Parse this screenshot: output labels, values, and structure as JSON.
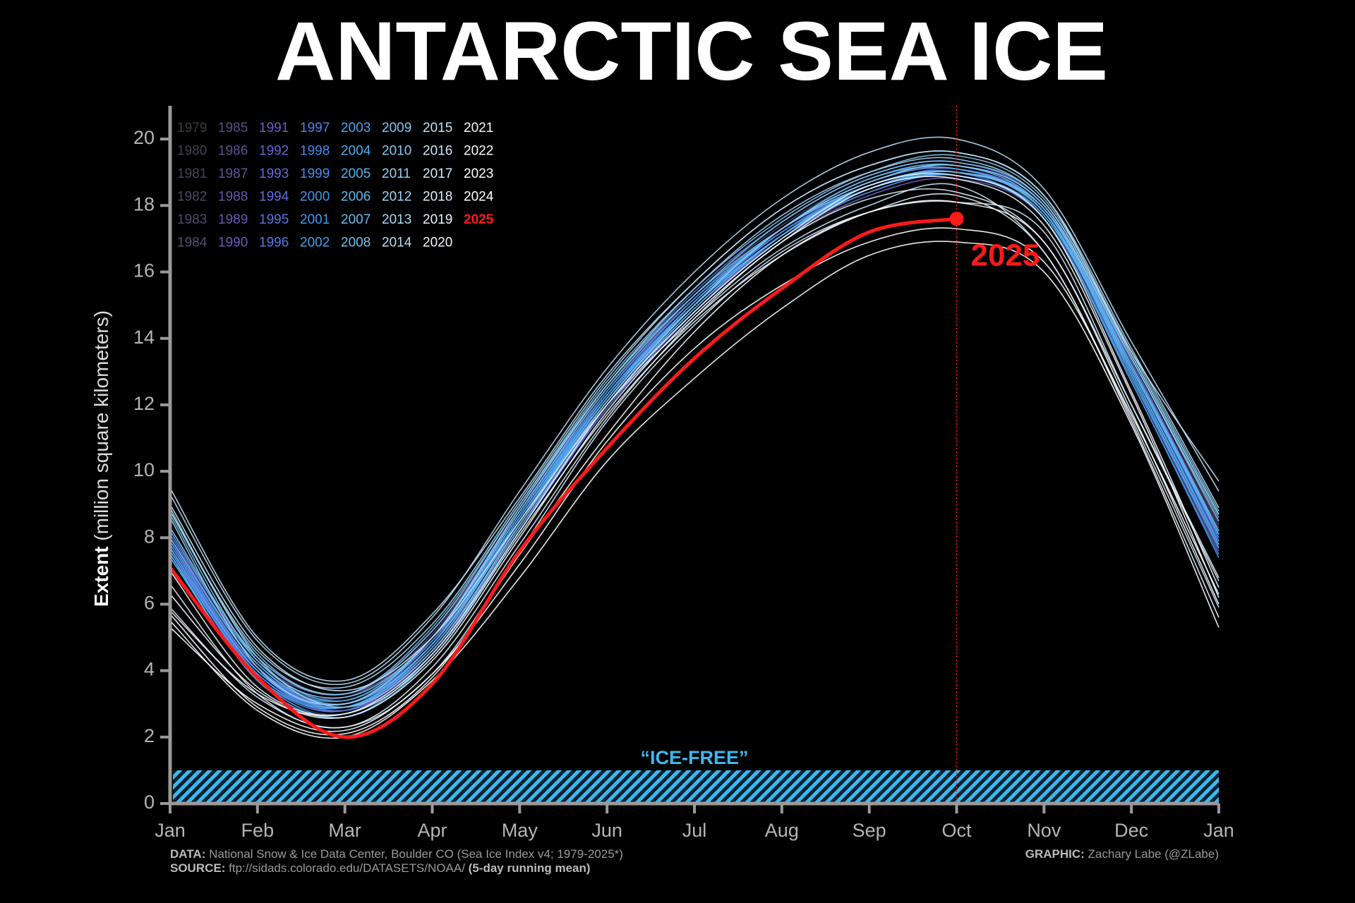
{
  "chart_data": {
    "type": "line",
    "title": "ANTARCTIC SEA ICE",
    "y_label_bold": "Extent",
    "y_label": "(million square kilometers)",
    "categories": [
      "Jan",
      "Feb",
      "Mar",
      "Apr",
      "May",
      "Jun",
      "Jul",
      "Aug",
      "Sep",
      "Oct",
      "Nov",
      "Dec",
      "Jan"
    ],
    "ylim": [
      0,
      21
    ],
    "yticks": [
      0,
      2,
      4,
      6,
      8,
      10,
      12,
      14,
      16,
      18,
      20
    ],
    "ice_free": {
      "label": "“ICE-FREE”",
      "value": 1,
      "color": "#3db8f0"
    },
    "highlight": {
      "label": "2025",
      "color": "#ff1a1a"
    },
    "series": [
      {
        "name": "1979",
        "color": "#3c3c46",
        "values": [
          7.6,
          4.1,
          3.0,
          4.9,
          8.6,
          12.1,
          14.9,
          17.0,
          18.3,
          18.8,
          17.6,
          12.9,
          7.8
        ]
      },
      {
        "name": "1980",
        "color": "#43404f",
        "values": [
          7.9,
          4.2,
          3.1,
          5.0,
          8.7,
          12.3,
          15.1,
          17.2,
          18.6,
          19.0,
          17.8,
          13.1,
          8.0
        ]
      },
      {
        "name": "1981",
        "color": "#484459",
        "values": [
          7.7,
          3.8,
          2.7,
          4.6,
          8.4,
          12.1,
          15.0,
          17.3,
          18.7,
          19.1,
          17.7,
          12.8,
          7.6
        ]
      },
      {
        "name": "1982",
        "color": "#4c4663",
        "values": [
          7.4,
          4.0,
          3.0,
          4.8,
          8.5,
          12.4,
          15.3,
          17.4,
          18.8,
          19.2,
          18.0,
          13.2,
          8.2
        ]
      },
      {
        "name": "1983",
        "color": "#51496d",
        "values": [
          8.0,
          4.3,
          3.1,
          4.9,
          8.6,
          12.2,
          15.0,
          17.1,
          18.5,
          19.0,
          17.9,
          13.3,
          8.3
        ]
      },
      {
        "name": "1984",
        "color": "#554c78",
        "values": [
          7.8,
          4.1,
          2.9,
          4.7,
          8.3,
          11.9,
          14.8,
          17.0,
          18.4,
          18.9,
          17.6,
          12.9,
          7.7
        ]
      },
      {
        "name": "1985",
        "color": "#5a4f84",
        "values": [
          7.5,
          4.0,
          3.2,
          5.1,
          8.9,
          12.5,
          15.2,
          17.2,
          18.5,
          19.0,
          17.8,
          13.0,
          7.9
        ]
      },
      {
        "name": "1986",
        "color": "#5f518f",
        "values": [
          8.1,
          4.4,
          3.3,
          5.2,
          8.8,
          12.2,
          15.0,
          17.1,
          18.5,
          19.1,
          17.9,
          13.4,
          8.4
        ]
      },
      {
        "name": "1987",
        "color": "#62539b",
        "values": [
          8.3,
          4.3,
          3.3,
          4.9,
          8.4,
          12.0,
          14.9,
          17.0,
          18.4,
          18.9,
          17.7,
          13.0,
          7.8
        ]
      },
      {
        "name": "1988",
        "color": "#6556a6",
        "values": [
          7.8,
          4.1,
          2.9,
          4.8,
          8.6,
          12.3,
          15.1,
          17.2,
          18.6,
          19.0,
          17.9,
          13.2,
          8.1
        ]
      },
      {
        "name": "1989",
        "color": "#6758b2",
        "values": [
          8.0,
          4.0,
          2.9,
          4.6,
          8.3,
          11.9,
          14.7,
          16.9,
          18.3,
          18.8,
          17.6,
          12.8,
          7.6
        ]
      },
      {
        "name": "1990",
        "color": "#695bbd",
        "values": [
          7.5,
          3.9,
          2.8,
          4.7,
          8.5,
          12.1,
          14.9,
          17.0,
          18.5,
          19.0,
          17.8,
          13.1,
          8.0
        ]
      },
      {
        "name": "1991",
        "color": "#6b5ec9",
        "values": [
          7.9,
          4.0,
          3.0,
          4.8,
          8.6,
          12.3,
          15.2,
          17.3,
          18.6,
          19.0,
          17.8,
          13.0,
          7.9
        ]
      },
      {
        "name": "1992",
        "color": "#6a62d2",
        "values": [
          7.7,
          3.9,
          2.8,
          4.6,
          8.3,
          12.0,
          14.9,
          17.1,
          18.5,
          18.9,
          17.7,
          13.0,
          7.8
        ]
      },
      {
        "name": "1993",
        "color": "#6767d9",
        "values": [
          7.6,
          4.0,
          3.0,
          4.9,
          8.7,
          12.4,
          15.2,
          17.3,
          18.7,
          19.1,
          17.9,
          13.2,
          8.1
        ]
      },
      {
        "name": "1994",
        "color": "#626ddf",
        "values": [
          7.9,
          4.1,
          2.9,
          4.7,
          8.5,
          12.2,
          15.1,
          17.3,
          18.7,
          19.2,
          18.0,
          13.3,
          8.2
        ]
      },
      {
        "name": "1995",
        "color": "#5c74e3",
        "values": [
          8.1,
          4.2,
          3.0,
          5.0,
          8.9,
          12.6,
          15.4,
          17.5,
          18.9,
          19.3,
          18.0,
          13.2,
          8.0
        ]
      },
      {
        "name": "1996",
        "color": "#577ae6",
        "values": [
          7.8,
          4.0,
          2.8,
          4.5,
          8.2,
          11.9,
          14.8,
          17.1,
          18.6,
          19.0,
          17.9,
          13.1,
          8.1
        ]
      },
      {
        "name": "1997",
        "color": "#5281e8",
        "values": [
          7.9,
          4.1,
          3.0,
          4.9,
          8.6,
          12.2,
          15.0,
          17.2,
          18.6,
          19.0,
          17.6,
          12.7,
          7.5
        ]
      },
      {
        "name": "1998",
        "color": "#4d88ea",
        "values": [
          7.4,
          3.8,
          2.8,
          4.8,
          8.6,
          12.3,
          15.1,
          17.2,
          18.5,
          18.9,
          17.7,
          13.0,
          7.9
        ]
      },
      {
        "name": "1999",
        "color": "#4a8eeb",
        "values": [
          7.8,
          4.0,
          3.0,
          4.9,
          8.7,
          12.4,
          15.2,
          17.3,
          18.6,
          19.0,
          17.8,
          13.1,
          8.0
        ]
      },
      {
        "name": "2000",
        "color": "#4795ec",
        "values": [
          7.9,
          4.1,
          3.1,
          5.0,
          8.8,
          12.4,
          15.2,
          17.3,
          18.7,
          19.1,
          17.8,
          13.0,
          7.8
        ]
      },
      {
        "name": "2001",
        "color": "#449bec",
        "values": [
          7.6,
          3.9,
          2.9,
          4.8,
          8.6,
          12.3,
          15.0,
          17.1,
          18.4,
          18.9,
          17.6,
          12.8,
          7.7
        ]
      },
      {
        "name": "2002",
        "color": "#44a1ec",
        "values": [
          7.6,
          3.8,
          2.6,
          4.4,
          8.2,
          12.0,
          14.8,
          17.0,
          18.5,
          18.9,
          17.6,
          12.7,
          7.4
        ]
      },
      {
        "name": "2003",
        "color": "#47a7ec",
        "values": [
          7.4,
          3.8,
          2.9,
          4.8,
          8.6,
          12.2,
          15.0,
          17.1,
          18.5,
          19.0,
          17.8,
          13.1,
          8.2
        ]
      },
      {
        "name": "2004",
        "color": "#4dadec",
        "values": [
          8.2,
          4.3,
          3.1,
          5.0,
          8.7,
          12.3,
          15.0,
          17.1,
          18.5,
          18.9,
          17.7,
          13.0,
          7.8
        ]
      },
      {
        "name": "2005",
        "color": "#55b2ec",
        "values": [
          7.7,
          4.0,
          2.9,
          4.7,
          8.5,
          12.2,
          15.1,
          17.3,
          18.8,
          19.1,
          17.8,
          12.9,
          7.7
        ]
      },
      {
        "name": "2006",
        "color": "#5eb8ed",
        "values": [
          7.5,
          3.7,
          2.6,
          4.5,
          8.3,
          12.0,
          14.9,
          17.1,
          18.6,
          19.0,
          17.8,
          13.1,
          8.1
        ]
      },
      {
        "name": "2007",
        "color": "#68bcee",
        "values": [
          8.0,
          4.2,
          3.0,
          4.8,
          8.5,
          12.1,
          15.0,
          17.3,
          18.8,
          19.2,
          17.9,
          13.2,
          8.2
        ]
      },
      {
        "name": "2008",
        "color": "#73c1ef",
        "values": [
          8.3,
          4.4,
          3.3,
          5.3,
          9.0,
          12.6,
          15.3,
          17.3,
          18.6,
          19.0,
          17.9,
          13.4,
          8.6
        ]
      },
      {
        "name": "2009",
        "color": "#7ec6f0",
        "values": [
          8.7,
          4.3,
          3.2,
          5.0,
          8.8,
          12.5,
          15.3,
          17.5,
          18.9,
          19.3,
          18.1,
          13.5,
          8.7
        ]
      },
      {
        "name": "2010",
        "color": "#89caf1",
        "values": [
          8.8,
          4.5,
          3.3,
          5.2,
          9.0,
          12.7,
          15.5,
          17.6,
          19.0,
          19.5,
          18.2,
          13.6,
          8.8
        ]
      },
      {
        "name": "2011",
        "color": "#95cff2",
        "values": [
          8.9,
          4.4,
          2.9,
          4.6,
          8.4,
          12.1,
          15.0,
          17.3,
          18.7,
          19.2,
          18.0,
          13.4,
          8.5
        ]
      },
      {
        "name": "2012",
        "color": "#a0d4f3",
        "values": [
          8.6,
          4.1,
          3.0,
          5.0,
          8.9,
          12.6,
          15.5,
          17.7,
          19.0,
          19.4,
          18.1,
          13.5,
          8.7
        ]
      },
      {
        "name": "2013",
        "color": "#abd8f4",
        "values": [
          8.8,
          4.6,
          3.5,
          5.4,
          9.1,
          12.8,
          15.7,
          17.9,
          19.2,
          19.6,
          18.3,
          13.7,
          8.9
        ]
      },
      {
        "name": "2014",
        "color": "#b6dcf5",
        "values": [
          9.3,
          4.9,
          3.6,
          5.6,
          9.4,
          13.1,
          16.0,
          18.2,
          19.6,
          20.0,
          18.5,
          13.9,
          9.4
        ]
      },
      {
        "name": "2015",
        "color": "#c1e1f6",
        "values": [
          9.5,
          5.0,
          3.7,
          5.7,
          9.2,
          12.9,
          15.7,
          17.9,
          19.2,
          19.6,
          18.3,
          13.6,
          9.7
        ]
      },
      {
        "name": "2016",
        "color": "#cbe5f7",
        "values": [
          9.0,
          4.7,
          3.4,
          5.0,
          8.5,
          12.0,
          14.6,
          16.7,
          18.0,
          18.6,
          16.6,
          11.6,
          5.9
        ]
      },
      {
        "name": "2017",
        "color": "#d5e9f8",
        "values": [
          5.9,
          3.2,
          2.3,
          3.9,
          7.6,
          11.5,
          14.4,
          16.6,
          17.8,
          18.1,
          17.2,
          12.0,
          6.7
        ]
      },
      {
        "name": "2018",
        "color": "#dfeefa",
        "values": [
          6.6,
          3.3,
          2.3,
          4.1,
          7.8,
          11.6,
          14.6,
          16.9,
          18.2,
          18.4,
          16.9,
          12.0,
          6.8
        ]
      },
      {
        "name": "2019",
        "color": "#e8f2fb",
        "values": [
          7.0,
          3.5,
          2.7,
          4.4,
          8.1,
          11.7,
          14.5,
          16.5,
          17.8,
          18.3,
          16.6,
          11.5,
          5.6
        ]
      },
      {
        "name": "2020",
        "color": "#f0f6fc",
        "values": [
          5.8,
          3.3,
          2.7,
          4.5,
          8.2,
          12.0,
          14.8,
          17.0,
          18.6,
          18.9,
          17.6,
          12.4,
          6.5
        ]
      },
      {
        "name": "2021",
        "color": "#f5f9fd",
        "values": [
          6.3,
          3.4,
          2.6,
          4.3,
          8.0,
          11.8,
          14.7,
          16.9,
          18.5,
          18.8,
          17.4,
          12.3,
          6.2
        ]
      },
      {
        "name": "2022",
        "color": "#fafcfe",
        "values": [
          5.7,
          2.9,
          2.1,
          3.8,
          7.5,
          11.1,
          14.2,
          16.5,
          17.8,
          18.1,
          16.9,
          11.8,
          6.0
        ]
      },
      {
        "name": "2023",
        "color": "#fdfeff",
        "values": [
          5.5,
          2.8,
          2.0,
          3.7,
          6.8,
          10.3,
          12.8,
          14.9,
          16.5,
          16.9,
          16.0,
          11.4,
          5.3
        ]
      },
      {
        "name": "2024",
        "color": "#ffffff",
        "values": [
          5.3,
          3.0,
          2.2,
          3.9,
          7.2,
          10.9,
          13.7,
          15.6,
          16.9,
          17.3,
          16.3,
          11.7,
          6.3
        ]
      },
      {
        "name": "2025",
        "color": "#ff1a1a",
        "values": [
          7.1,
          3.8,
          2.0,
          3.6,
          7.6,
          10.7,
          13.4,
          15.5,
          17.2,
          17.6,
          null,
          null,
          null
        ]
      }
    ],
    "footer": {
      "data_key": "DATA:",
      "data_text": "National Snow & Ice Data Center, Boulder CO (Sea Ice Index v4; 1979-2025*)",
      "source_key": "SOURCE:",
      "source_text": "ftp://sidads.colorado.edu/DATASETS/NOAA/",
      "source_note": "(5-day running mean)",
      "graphic_key": "GRAPHIC:",
      "graphic_text": "Zachary Labe (@ZLabe)"
    }
  }
}
